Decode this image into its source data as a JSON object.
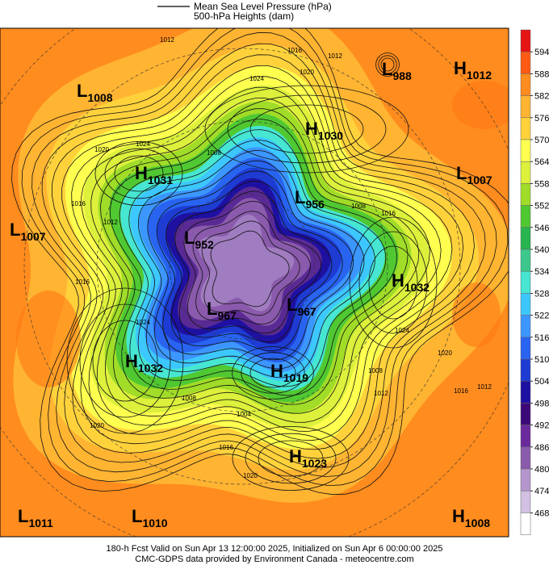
{
  "legend": {
    "pressure": "Mean Sea Level Pressure (hPa)",
    "heights": "500-hPa Heights (dam)"
  },
  "centers": [
    {
      "letter": "L",
      "value": "1008"
    },
    {
      "letter": "H",
      "value": "1030"
    },
    {
      "letter": "L",
      "value": "988"
    },
    {
      "letter": "H",
      "value": "1012"
    },
    {
      "letter": "H",
      "value": "1031"
    },
    {
      "letter": "L",
      "value": "1007"
    },
    {
      "letter": "L",
      "value": "956"
    },
    {
      "letter": "L",
      "value": "1007"
    },
    {
      "letter": "L",
      "value": "952"
    },
    {
      "letter": "H",
      "value": "1032"
    },
    {
      "letter": "L",
      "value": "967"
    },
    {
      "letter": "L",
      "value": "967"
    },
    {
      "letter": "H",
      "value": "1032"
    },
    {
      "letter": "H",
      "value": "1019"
    },
    {
      "letter": "H",
      "value": "1023"
    },
    {
      "letter": "L",
      "value": "1011"
    },
    {
      "letter": "L",
      "value": "1010"
    },
    {
      "letter": "H",
      "value": "1008"
    }
  ],
  "contour_labels": [
    1012,
    1016,
    1012,
    1020,
    1024,
    1020,
    1024,
    1008,
    1016,
    1012,
    1016,
    1024,
    1008,
    1016,
    1024,
    1020,
    1016,
    1012,
    1020,
    1008,
    1004,
    1016,
    1020,
    1012,
    1008
  ],
  "colorbar": {
    "labels": [
      594,
      588,
      582,
      576,
      570,
      564,
      558,
      552,
      546,
      540,
      534,
      528,
      522,
      516,
      510,
      504,
      498,
      492,
      486,
      480,
      474,
      468
    ],
    "colors": [
      "#e61414",
      "#ff5a14",
      "#ff8c1e",
      "#ffb432",
      "#ffd23c",
      "#ffff50",
      "#dcf03c",
      "#a0dc28",
      "#50c832",
      "#28b450",
      "#3cc88c",
      "#46e6d2",
      "#3cc8ff",
      "#3c96ff",
      "#2864f0",
      "#1e3cd2",
      "#1e10a0",
      "#3c0a78",
      "#6a2a9c",
      "#8a5aac",
      "#b496cc",
      "#d2c0e2",
      "#ffffff"
    ]
  },
  "footer": {
    "line1": "180-h Fcst Valid on Sun Apr 13 12:00:00 2025, Initialized on Sun Apr  6 00:00:00 2025",
    "line2": "CMC-GDPS data provided by Environment Canada - meteocentre.com"
  }
}
